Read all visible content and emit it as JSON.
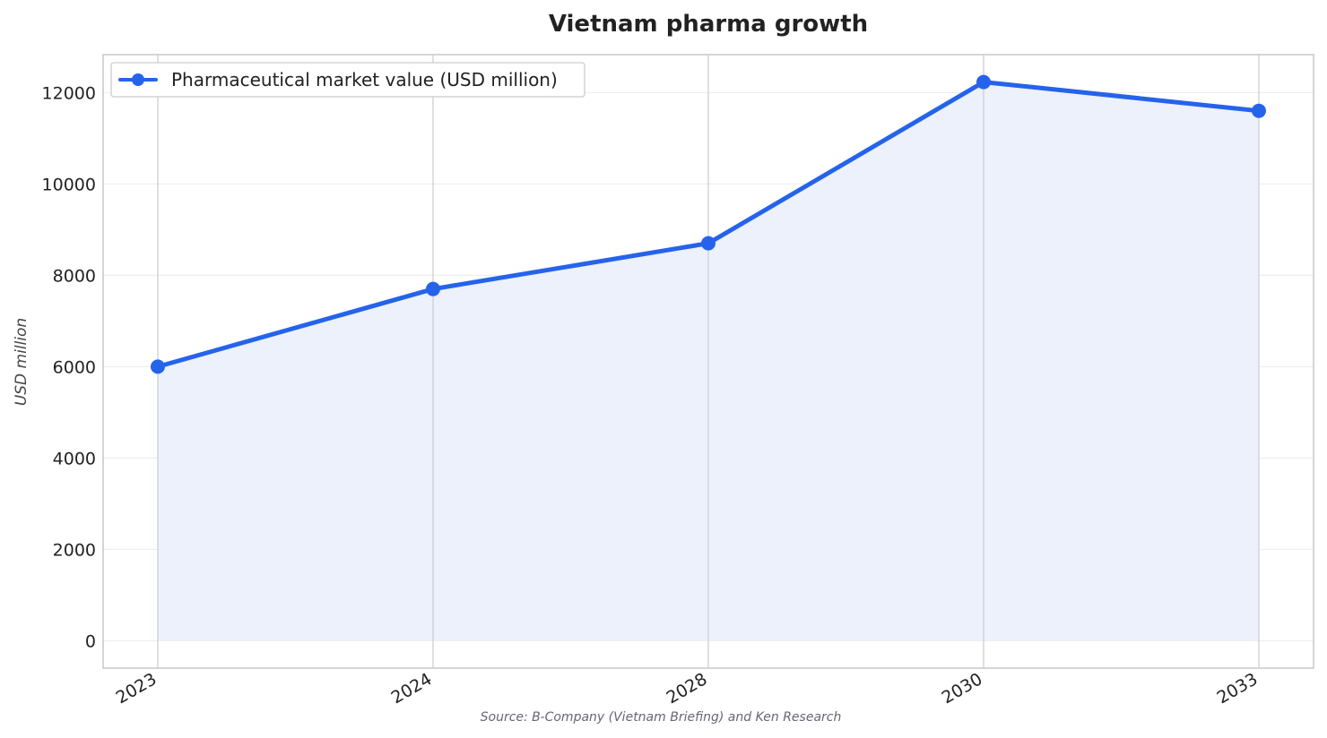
{
  "chart_data": {
    "type": "line",
    "title": "Vietnam pharma growth",
    "xlabel": "",
    "ylabel": "USD million",
    "categories": [
      "2023",
      "2024",
      "2028",
      "2030",
      "2033"
    ],
    "series": [
      {
        "name": "Pharmaceutical market value (USD million)",
        "values": [
          6000,
          7700,
          8700,
          12230,
          11600
        ]
      }
    ],
    "yticks": [
      0,
      2000,
      4000,
      6000,
      8000,
      10000,
      12000
    ],
    "ylim": [
      -600,
      12830
    ],
    "grid": true,
    "area_fill": true,
    "legend_position": "top-left",
    "source": "Source: B-Company (Vietnam Briefing) and Ken Research",
    "colors": {
      "line": "#2563eb",
      "fill": "#ecf1fc",
      "grid_vertical": "#c8cad2",
      "grid_horizontal": "#ebebeb",
      "frame": "#c8c8c8"
    }
  }
}
